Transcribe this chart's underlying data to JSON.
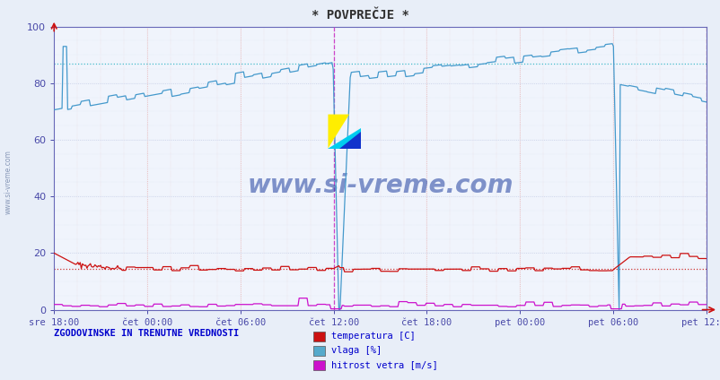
{
  "title": "* POVPREČJE *",
  "bg_color": "#e8eef8",
  "plot_bg_color": "#f0f4fc",
  "grid_v_color": "#e8b0b0",
  "grid_h_color": "#c8d0e8",
  "axis_color": "#6868b8",
  "tick_label_color": "#4848a8",
  "title_color": "#303030",
  "watermark_text": "www.si-vreme.com",
  "watermark_color": "#2040a0",
  "bottom_left_label": "ZGODOVINSKE IN TRENUTNE VREDNOSTI",
  "legend_labels": [
    "temperatura [C]",
    "vlaga [%]",
    "hitrost vetra [m/s]"
  ],
  "legend_colors": [
    "#cc1111",
    "#55aacc",
    "#cc11cc"
  ],
  "temp_color": "#cc1111",
  "hum_color": "#4499cc",
  "wind_color": "#cc11cc",
  "hline_temp_color": "#cc3333",
  "hline_hum_color": "#44bbcc",
  "vline1_color": "#cc44cc",
  "vline2_color": "#cc6666",
  "xtick_labels": [
    "sre 18:00",
    "čet 00:00",
    "čet 06:00",
    "čet 12:00",
    "čet 18:00",
    "pet 00:00",
    "pet 06:00",
    "pet 12:00"
  ],
  "ylim": [
    0,
    100
  ],
  "yticks": [
    0,
    20,
    40,
    60,
    80,
    100
  ],
  "hline_temp_avg": 14.5,
  "hline_hum_avg": 87.0,
  "n_points": 576,
  "fig_width": 8.03,
  "fig_height": 4.24,
  "dpi": 100
}
